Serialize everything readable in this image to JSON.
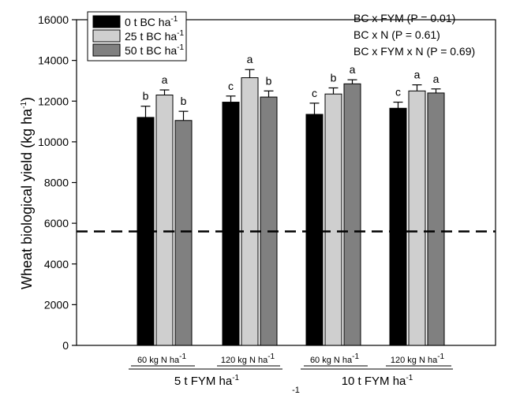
{
  "chart_data": {
    "type": "bar",
    "ylabel": "Wheat biological yield (kg ha",
    "ylabel_sup": "-1",
    "ylabel_close": ")",
    "ylim": [
      0,
      16000
    ],
    "yticks": [
      "0",
      "2000",
      "4000",
      "6000",
      "8000",
      "10000",
      "12000",
      "14000",
      "16000"
    ],
    "ytick_values": [
      0,
      2000,
      4000,
      6000,
      8000,
      10000,
      12000,
      14000,
      16000
    ],
    "reference_line": 5600,
    "grid": false,
    "legend_position": "top-left",
    "series": [
      {
        "name": "0 t BC ha",
        "name_sup": "-1",
        "color": "#000000",
        "values": [
          11200,
          11950,
          11350,
          11650
        ],
        "errors": [
          550,
          300,
          550,
          300
        ],
        "letters": [
          "b",
          "c",
          "c",
          "c"
        ]
      },
      {
        "name": "25 t BC ha",
        "name_sup": "-1",
        "color": "#cfcfcf",
        "values": [
          12300,
          13150,
          12350,
          12500
        ],
        "errors": [
          250,
          400,
          300,
          300
        ],
        "letters": [
          "a",
          "a",
          "b",
          "a"
        ]
      },
      {
        "name": "50 t BC ha",
        "name_sup": "-1",
        "color": "#808080",
        "values": [
          11050,
          12200,
          12850,
          12400
        ],
        "errors": [
          450,
          300,
          200,
          200
        ],
        "letters": [
          "b",
          "b",
          "a",
          "a"
        ]
      }
    ],
    "categories": [
      {
        "label": "60 kg N ha",
        "sup": "-1"
      },
      {
        "label": "120 kg N ha",
        "sup": "-1"
      },
      {
        "label": "60 kg N ha",
        "sup": "-1"
      },
      {
        "label": "120 kg N ha",
        "sup": "-1"
      }
    ],
    "groups": [
      {
        "label": "5 t FYM ha",
        "sup": "-1"
      },
      {
        "label": "10 t FYM ha",
        "sup": "-1"
      }
    ],
    "stray_text": "-1",
    "annotations": [
      "BC x FYM (P = 0.01)",
      "BC x N (P = 0.61)",
      "BC x FYM x N (P = 0.69)"
    ]
  }
}
